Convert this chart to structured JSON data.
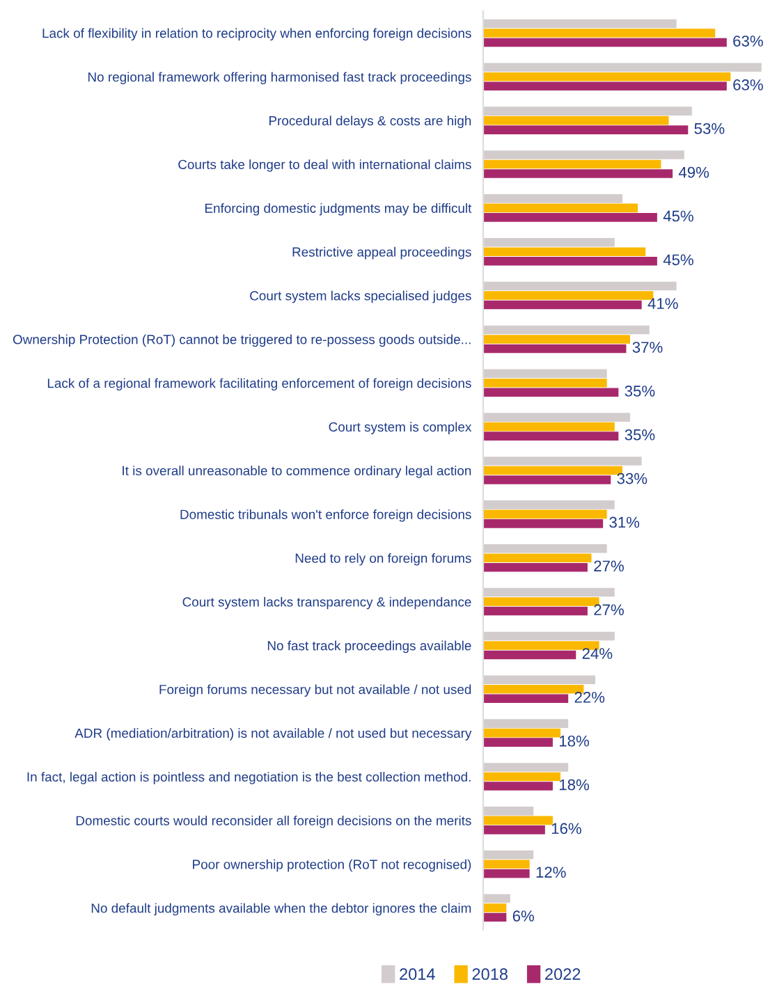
{
  "chart_data": {
    "type": "bar",
    "orientation": "horizontal",
    "categories": [
      "Lack of flexibility in relation to reciprocity when enforcing foreign decisions",
      "No regional framework offering harmonised fast track proceedings",
      "Procedural delays & costs are high",
      "Courts take longer to deal with international claims",
      "Enforcing domestic judgments may be difficult",
      "Restrictive appeal proceedings",
      "Court system lacks specialised judges",
      "Ownership Protection (RoT) cannot be triggered to re-possess goods outside...",
      "Lack of a regional framework facilitating enforcement of foreign decisions",
      "Court system is complex",
      "It is overall unreasonable to commence ordinary legal action",
      "Domestic tribunals won't enforce foreign decisions",
      "Need to rely on foreign forums",
      "Court system lacks transparency & independance",
      "No fast track proceedings available",
      "Foreign forums necessary but not available / not used",
      "ADR (mediation/arbitration) is not available / not used but necessary",
      "In fact, legal action is pointless and negotiation is the best collection method.",
      "Domestic courts would reconsider all foreign decisions on the merits",
      "Poor ownership protection (RoT not recognised)",
      "No default judgments available when the debtor ignores the claim"
    ],
    "series": [
      {
        "name": "2014",
        "color": "#d3cccc",
        "values": [
          50,
          72,
          54,
          52,
          36,
          34,
          50,
          43,
          32,
          38,
          41,
          34,
          32,
          34,
          34,
          29,
          22,
          22,
          13,
          13,
          7
        ]
      },
      {
        "name": "2018",
        "color": "#fbb800",
        "values": [
          60,
          64,
          48,
          46,
          40,
          42,
          44,
          38,
          32,
          34,
          36,
          32,
          28,
          30,
          30,
          26,
          20,
          20,
          18,
          12,
          6
        ]
      },
      {
        "name": "2022",
        "color": "#a8296b",
        "values": [
          63,
          63,
          53,
          49,
          45,
          45,
          41,
          37,
          35,
          35,
          33,
          31,
          27,
          27,
          24,
          22,
          18,
          18,
          16,
          12,
          6
        ],
        "value_labels": [
          "63%",
          "63%",
          "53%",
          "49%",
          "45%",
          "45%",
          "41%",
          "37%",
          "35%",
          "35%",
          "33%",
          "31%",
          "27%",
          "27%",
          "24%",
          "22%",
          "18%",
          "18%",
          "16%",
          "12%",
          "6%"
        ]
      }
    ],
    "tick_labels": "y",
    "grid": false,
    "legend": "bottom"
  }
}
